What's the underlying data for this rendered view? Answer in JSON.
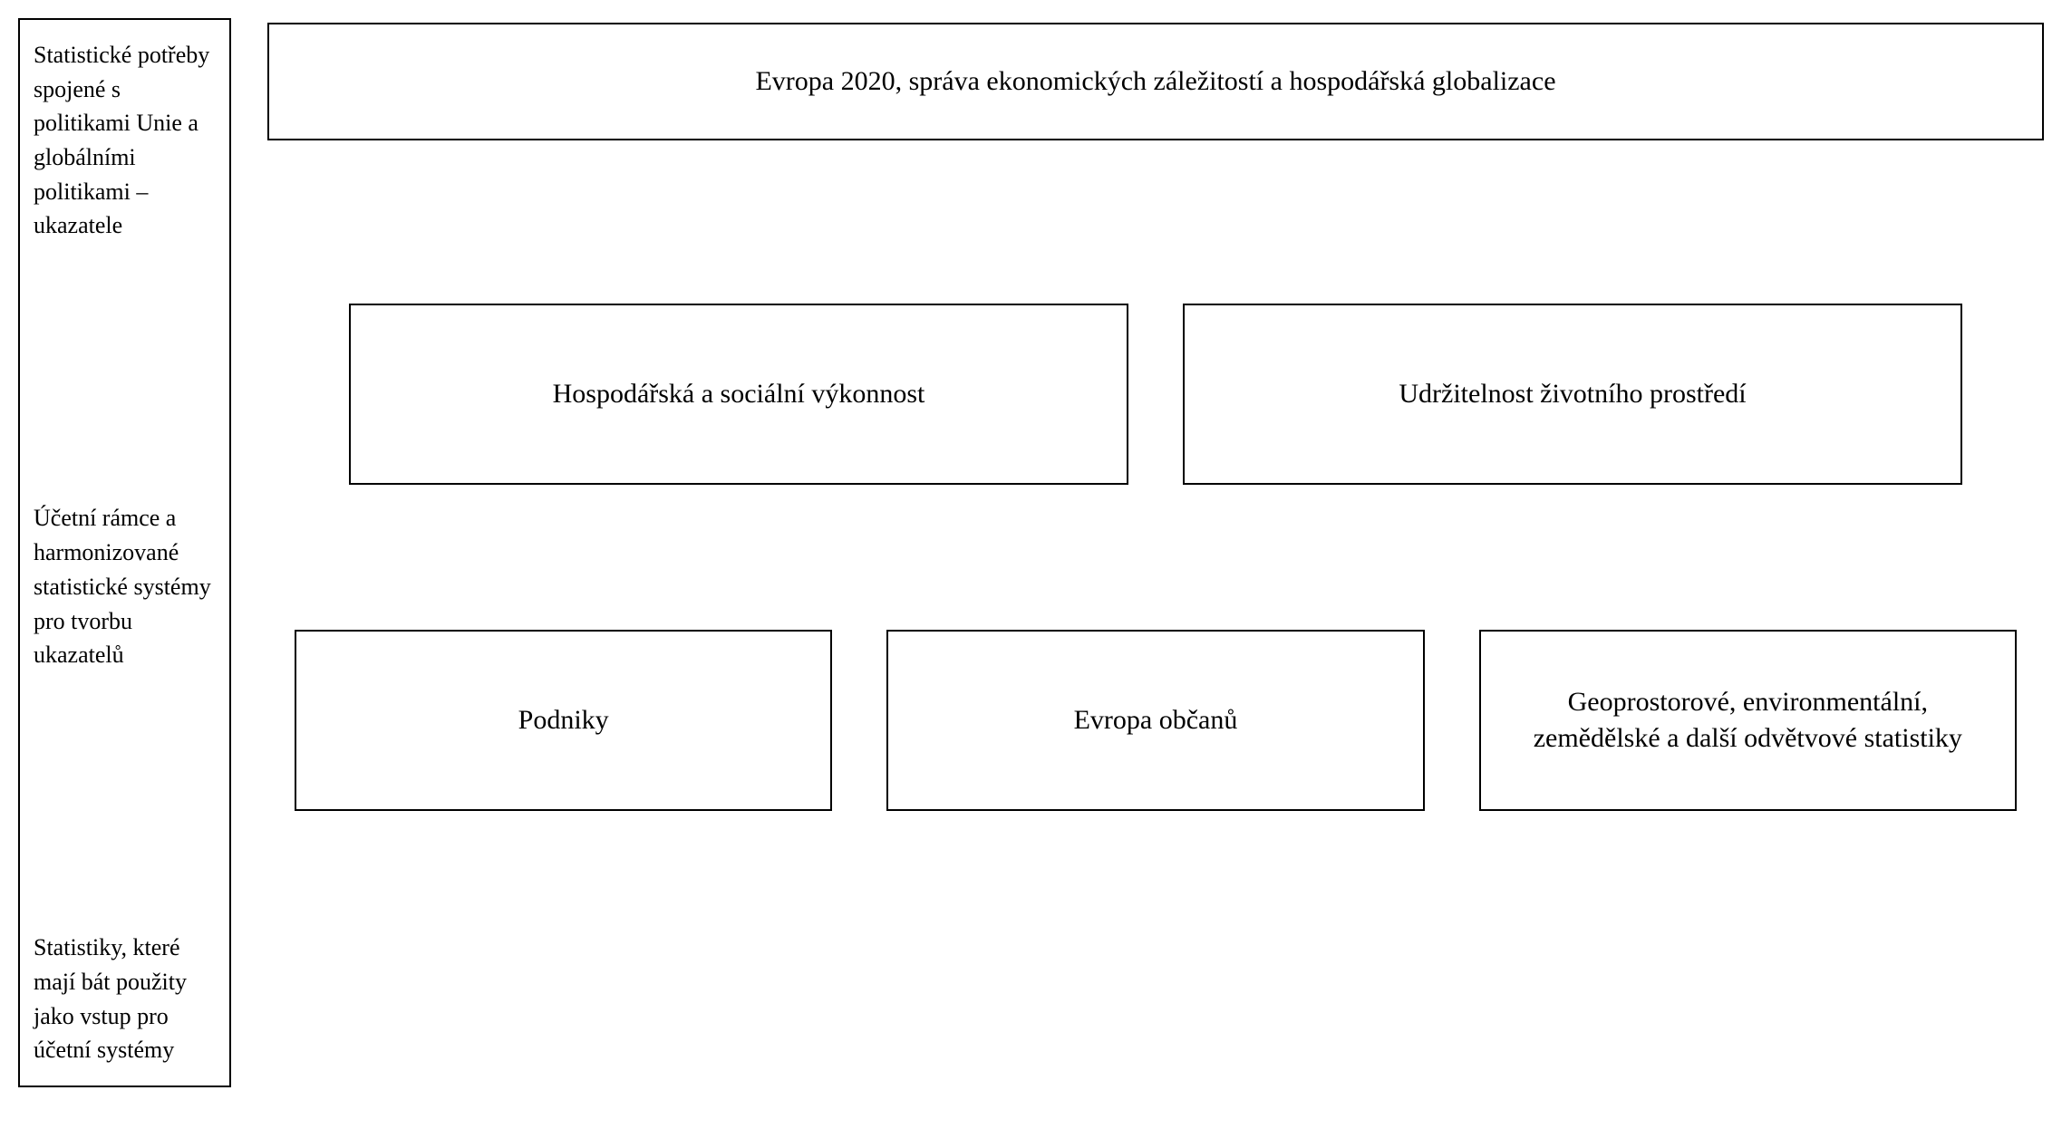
{
  "diagram": {
    "type": "flowchart",
    "background_color": "#ffffff",
    "border_color": "#000000",
    "text_color": "#000000",
    "label_fontsize": 26,
    "box_fontsize": 30,
    "font_family": "Georgia, 'Times New Roman', serif",
    "left_labels": {
      "label1": "Statistické potřeby spojené s politikami Unie a globálními politikami – ukazatele",
      "label2": "Účetní rámce a harmonizované statistické systémy pro tvorbu ukazatelů",
      "label3": "Statistiky, které mají bát použity jako vstup pro účetní systémy"
    },
    "row1": {
      "box1": "Evropa 2020, správa ekonomických záležitostí a hospodářská globalizace"
    },
    "row2": {
      "box1": "Hospodářská a sociální výkonnost",
      "box2": "Udržitelnost životního prostředí"
    },
    "row3": {
      "box1": "Podniky",
      "box2": "Evropa občanů",
      "box3": "Geoprostorové, environmentální, zemědělské a další odvětvové statistiky"
    }
  }
}
